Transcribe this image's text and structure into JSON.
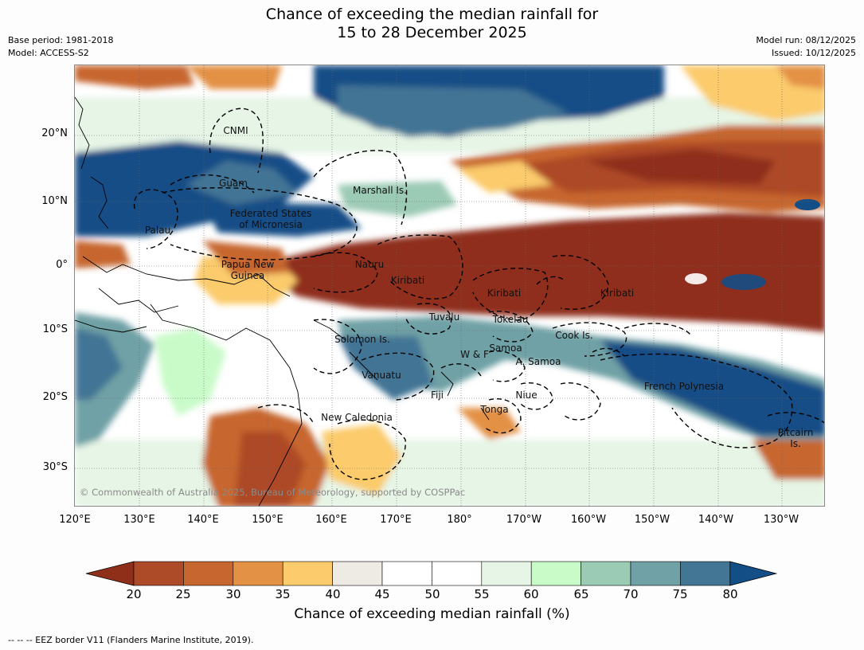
{
  "title_line1": "Chance of exceeding the median rainfall for",
  "title_line2": "15 to 28 December 2025",
  "meta_left": [
    "Base period: 1981-2018",
    "Model: ACCESS-S2"
  ],
  "meta_right": [
    "Model run: 08/12/2025",
    "Issued: 10/12/2025"
  ],
  "lat_ticks": [
    "20°N",
    "10°N",
    "0°",
    "10°S",
    "20°S",
    "30°S"
  ],
  "lon_ticks": [
    "120°E",
    "130°E",
    "140°E",
    "150°E",
    "160°E",
    "170°E",
    "180°",
    "170°W",
    "160°W",
    "150°W",
    "140°W",
    "130°W"
  ],
  "region_labels": [
    {
      "name": "CNMI",
      "lines": [
        "CNMI"
      ]
    },
    {
      "name": "Guam",
      "lines": [
        "Guam"
      ]
    },
    {
      "name": "Marshall Is.",
      "lines": [
        "Marshall Is."
      ]
    },
    {
      "name": "Federated States of Micronesia",
      "lines": [
        "Federated States",
        "of Micronesia"
      ]
    },
    {
      "name": "Palau",
      "lines": [
        "Palau"
      ]
    },
    {
      "name": "Papua New Guinea",
      "lines": [
        "Papua New",
        "Guinea"
      ]
    },
    {
      "name": "Nauru",
      "lines": [
        "Nauru"
      ]
    },
    {
      "name": "Kiribati (west)",
      "lines": [
        "Kiribati"
      ]
    },
    {
      "name": "Kiribati (central)",
      "lines": [
        "Kiribati"
      ]
    },
    {
      "name": "Kiribati (east)",
      "lines": [
        "Kiribati"
      ]
    },
    {
      "name": "Tuvalu",
      "lines": [
        "Tuvalu"
      ]
    },
    {
      "name": "Tokelau",
      "lines": [
        "Tokelau"
      ]
    },
    {
      "name": "Cook Is.",
      "lines": [
        "Cook Is."
      ]
    },
    {
      "name": "Solomon Is.",
      "lines": [
        "Solomon Is."
      ]
    },
    {
      "name": "Samoa",
      "lines": [
        "Samoa"
      ]
    },
    {
      "name": "W & F",
      "lines": [
        "W & F"
      ]
    },
    {
      "name": "A. Samoa",
      "lines": [
        "A. Samoa"
      ]
    },
    {
      "name": "Vanuatu",
      "lines": [
        "Vanuatu"
      ]
    },
    {
      "name": "Fiji",
      "lines": [
        "Fiji"
      ]
    },
    {
      "name": "Niue",
      "lines": [
        "Niue"
      ]
    },
    {
      "name": "French Polynesia",
      "lines": [
        "French Polynesia"
      ]
    },
    {
      "name": "Tonga",
      "lines": [
        "Tonga"
      ]
    },
    {
      "name": "New Caledonia",
      "lines": [
        "New Caledonia"
      ]
    },
    {
      "name": "Pitcairn Is.",
      "lines": [
        "Pitcairn",
        "Is."
      ]
    }
  ],
  "copyright": "© Commonwealth of Australia 2025, Bureau of Meteorology, supported by COSPPac",
  "colorbar": {
    "ticks": [
      "20",
      "25",
      "30",
      "35",
      "40",
      "45",
      "50",
      "55",
      "60",
      "65",
      "70",
      "75",
      "80"
    ],
    "colors": [
      "#8f2f1a",
      "#ad4a28",
      "#c7662f",
      "#e39144",
      "#fbcb6c",
      "#eeebe5",
      "#ffffff",
      "#ffffff",
      "#e6f5e6",
      "#c9fbc9",
      "#9bcab5",
      "#6fa1a6",
      "#437595",
      "#134e86"
    ],
    "label": "Chance of exceeding median rainfall (%)"
  },
  "footnote": "--  --  -- EEZ border V11 (Flanders Marine Institute, 2019)."
}
